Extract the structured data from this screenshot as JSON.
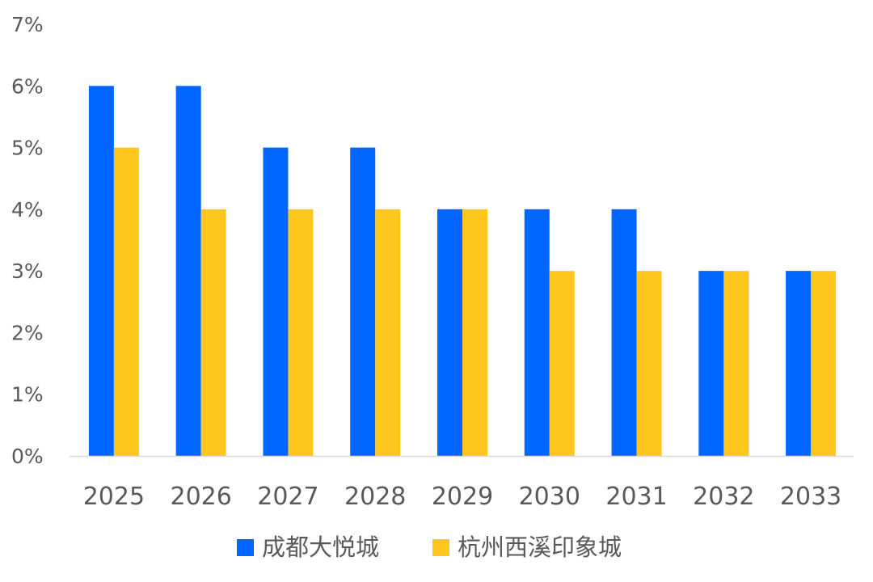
{
  "chart_data": {
    "type": "bar",
    "categories": [
      "2025",
      "2026",
      "2027",
      "2028",
      "2029",
      "2030",
      "2031",
      "2032",
      "2033"
    ],
    "series": [
      {
        "name": "成都大悦城",
        "color": "#0066FF",
        "values": [
          6,
          6,
          5,
          5,
          4,
          4,
          4,
          3,
          3
        ]
      },
      {
        "name": "杭州西溪印象城",
        "color": "#FFC61E",
        "values": [
          5,
          4,
          4,
          4,
          4,
          3,
          3,
          3,
          3
        ]
      }
    ],
    "ylim": [
      0,
      7
    ],
    "yticks": [
      "0%",
      "1%",
      "2%",
      "3%",
      "4%",
      "5%",
      "6%",
      "7%"
    ],
    "grid": false,
    "legend": "bottom-center"
  }
}
